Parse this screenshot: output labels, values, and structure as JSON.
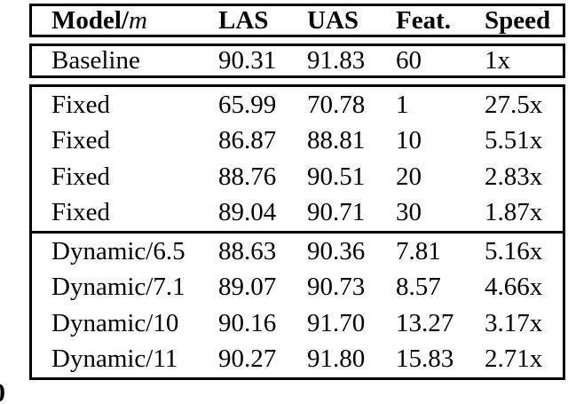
{
  "page": {
    "background": "#ffffff",
    "text_color": "#000000",
    "border_color": "#000000"
  },
  "table": {
    "header": {
      "model_label": "Model/",
      "model_variable": "m",
      "las": "LAS",
      "uas": "UAS",
      "feat": "Feat.",
      "speed": "Speed"
    },
    "baseline_rows": [
      {
        "model": "Baseline",
        "las": "90.31",
        "uas": "91.83",
        "feat": "60",
        "speed": "1x"
      }
    ],
    "fixed_rows": [
      {
        "model": "Fixed",
        "las": "65.99",
        "uas": "70.78",
        "feat": "1",
        "speed": "27.5x"
      },
      {
        "model": "Fixed",
        "las": "86.87",
        "uas": "88.81",
        "feat": "10",
        "speed": "5.51x"
      },
      {
        "model": "Fixed",
        "las": "88.76",
        "uas": "90.51",
        "feat": "20",
        "speed": "2.83x"
      },
      {
        "model": "Fixed",
        "las": "89.04",
        "uas": "90.71",
        "feat": "30",
        "speed": "1.87x"
      }
    ],
    "dynamic_rows": [
      {
        "model": "Dynamic/6.5",
        "las": "88.63",
        "uas": "90.36",
        "feat": "7.81",
        "speed": "5.16x"
      },
      {
        "model": "Dynamic/7.1",
        "las": "89.07",
        "uas": "90.73",
        "feat": "8.57",
        "speed": "4.66x"
      },
      {
        "model": "Dynamic/10",
        "las": "90.16",
        "uas": "91.70",
        "feat": "13.27",
        "speed": "3.17x"
      },
      {
        "model": "Dynamic/11",
        "las": "90.27",
        "uas": "91.80",
        "feat": "15.83",
        "speed": "2.71x"
      }
    ]
  },
  "artifact": {
    "clipped_glyph": "0"
  },
  "chart_data": {
    "type": "table",
    "columns": [
      "Model/m",
      "LAS",
      "UAS",
      "Feat.",
      "Speed"
    ],
    "rows": [
      [
        "Baseline",
        90.31,
        91.83,
        60,
        "1x"
      ],
      [
        "Fixed",
        65.99,
        70.78,
        1,
        "27.5x"
      ],
      [
        "Fixed",
        86.87,
        88.81,
        10,
        "5.51x"
      ],
      [
        "Fixed",
        88.76,
        90.51,
        20,
        "2.83x"
      ],
      [
        "Fixed",
        89.04,
        90.71,
        30,
        "1.87x"
      ],
      [
        "Dynamic/6.5",
        88.63,
        90.36,
        7.81,
        "5.16x"
      ],
      [
        "Dynamic/7.1",
        89.07,
        90.73,
        8.57,
        "4.66x"
      ],
      [
        "Dynamic/10",
        90.16,
        91.7,
        13.27,
        "3.17x"
      ],
      [
        "Dynamic/11",
        90.27,
        91.8,
        15.83,
        "2.71x"
      ]
    ]
  }
}
